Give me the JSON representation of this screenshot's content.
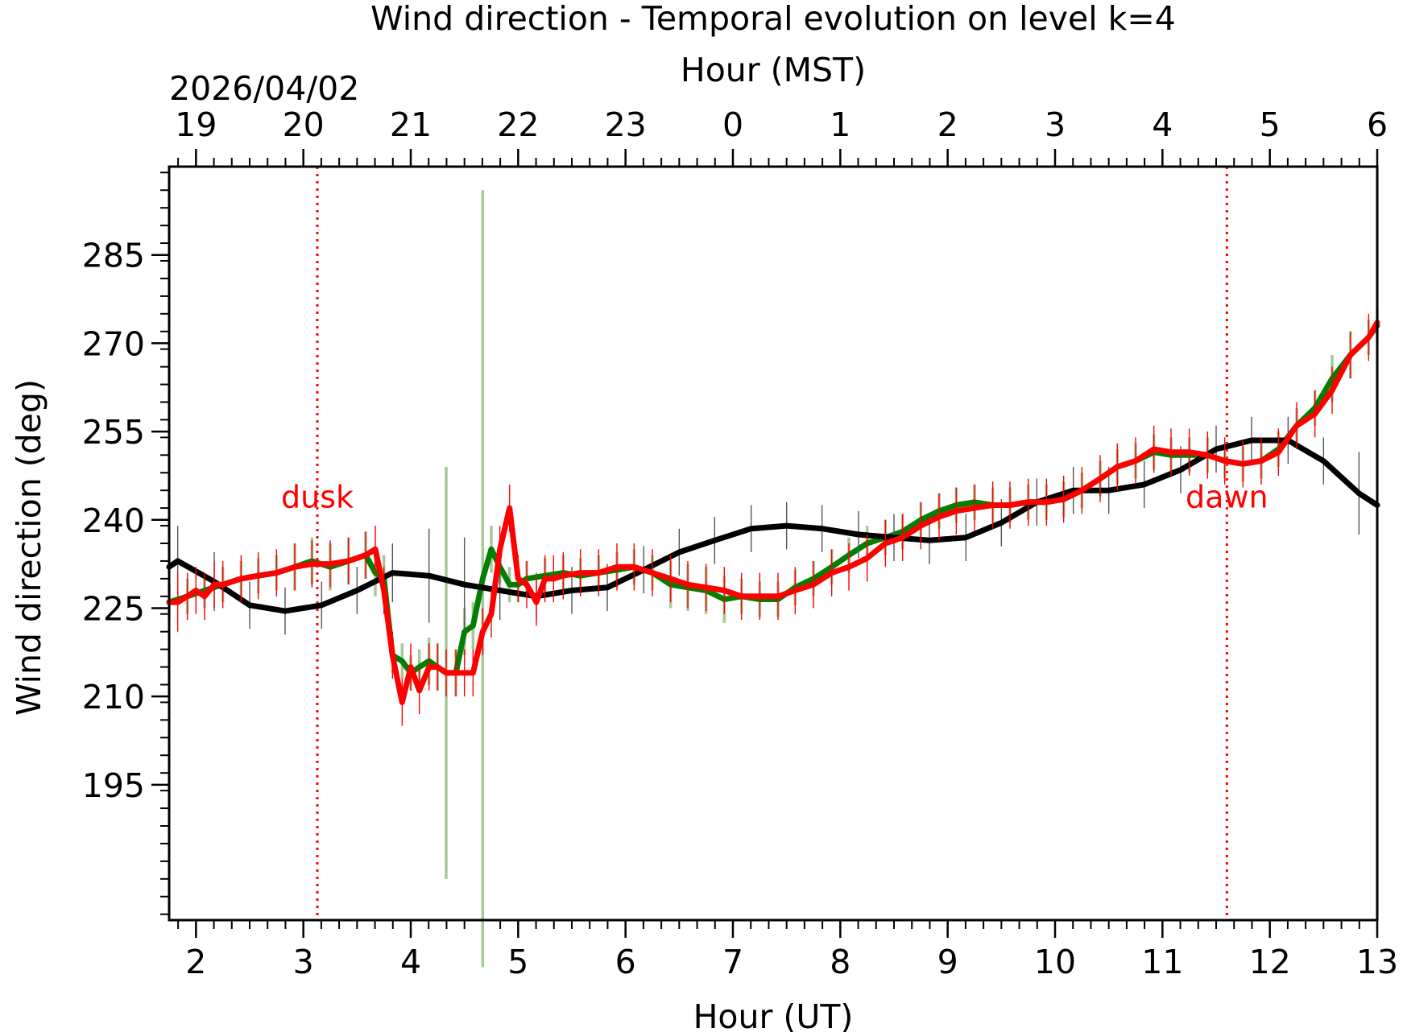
{
  "chart_data": {
    "type": "line",
    "title": "Wind direction - Temporal evolution on level k=4",
    "date_label": "2026/04/02",
    "xlabel": "Hour (UT)",
    "x2label": "Hour (MST)",
    "ylabel": "Wind direction (deg)",
    "xlim": [
      1.75,
      13.0
    ],
    "ylim": [
      172,
      300
    ],
    "x_ticks": [
      2,
      3,
      4,
      5,
      6,
      7,
      8,
      9,
      10,
      11,
      12,
      13
    ],
    "x_tick_labels": [
      "2",
      "3",
      "4",
      "5",
      "6",
      "7",
      "8",
      "9",
      "10",
      "11",
      "12",
      "13"
    ],
    "x2_tick_labels": [
      "19",
      "20",
      "21",
      "22",
      "23",
      "0",
      "1",
      "2",
      "3",
      "4",
      "5",
      "6"
    ],
    "y_ticks": [
      195,
      210,
      225,
      240,
      255,
      270,
      285
    ],
    "y_tick_labels": [
      "195",
      "210",
      "225",
      "240",
      "255",
      "270",
      "285"
    ],
    "grid": false,
    "annotations": [
      {
        "text": "dusk",
        "x": 3.13,
        "y": 244,
        "color": "#ff0000",
        "line_style": "dotted"
      },
      {
        "text": "dawn",
        "x": 11.6,
        "y": 244,
        "color": "#ff0000",
        "line_style": "dotted"
      }
    ],
    "series": [
      {
        "color": "#007f00",
        "err_color": "#a8c89a",
        "x": [
          1.75,
          1.92,
          2.08,
          2.25,
          2.42,
          2.58,
          2.75,
          2.92,
          3.08,
          3.25,
          3.42,
          3.58,
          3.67,
          3.75,
          3.83,
          3.92,
          4.0,
          4.08,
          4.17,
          4.25,
          4.33,
          4.42,
          4.5,
          4.58,
          4.67,
          4.75,
          4.83,
          4.92,
          5.0,
          5.08,
          5.25,
          5.42,
          5.58,
          5.75,
          5.92,
          6.08,
          6.25,
          6.42,
          6.58,
          6.75,
          6.92,
          7.08,
          7.25,
          7.42,
          7.58,
          7.75,
          7.92,
          8.08,
          8.25,
          8.42,
          8.58,
          8.75,
          8.92,
          9.08,
          9.25,
          9.42,
          9.58,
          9.75,
          9.92,
          10.08,
          10.25,
          10.42,
          10.58,
          10.75,
          10.92,
          11.08,
          11.25,
          11.42,
          11.58,
          11.75,
          11.92,
          12.08,
          12.25,
          12.42,
          12.58,
          12.75,
          12.92,
          13.0
        ],
        "y": [
          226,
          227,
          228,
          229,
          230,
          230.5,
          231,
          232,
          233,
          232,
          233,
          234,
          231,
          230,
          217,
          216,
          214,
          215,
          216,
          215,
          214,
          214,
          221,
          222,
          230,
          235,
          232,
          229,
          229,
          230,
          230.5,
          231,
          230.5,
          231,
          231.5,
          232,
          231,
          229,
          228.5,
          228,
          226.5,
          227,
          226.5,
          226.5,
          228.5,
          230,
          232,
          234,
          236,
          237,
          238,
          240,
          241.5,
          242.5,
          243,
          242.5,
          242.5,
          243,
          243,
          243.5,
          245,
          247,
          249,
          250,
          251.5,
          251,
          251,
          251,
          250,
          249.5,
          250,
          252,
          256,
          259,
          264,
          268,
          271,
          273
        ],
        "err": [
          3,
          3,
          3,
          3,
          3,
          3,
          3,
          4,
          4,
          4,
          4,
          4,
          4,
          4,
          3,
          3,
          3,
          3,
          4,
          4,
          35,
          4,
          4,
          4,
          66,
          4,
          3,
          3,
          3,
          3,
          3,
          3,
          3,
          3,
          3,
          3,
          3,
          4,
          4,
          4,
          4,
          3,
          3,
          3,
          3,
          3,
          3,
          3,
          3,
          3,
          3,
          3,
          3,
          3,
          3,
          3,
          3,
          3,
          3,
          3,
          3,
          3,
          3,
          3,
          3,
          3,
          3,
          3,
          3,
          3,
          3,
          3,
          3,
          3,
          4,
          4,
          3,
          3
        ]
      },
      {
        "color": "#ff0000",
        "err_color": "#ff0000",
        "x": [
          1.75,
          1.83,
          1.92,
          2.0,
          2.08,
          2.17,
          2.25,
          2.42,
          2.58,
          2.75,
          2.92,
          3.08,
          3.25,
          3.42,
          3.58,
          3.67,
          3.75,
          3.83,
          3.92,
          4.0,
          4.08,
          4.17,
          4.25,
          4.33,
          4.42,
          4.5,
          4.58,
          4.67,
          4.75,
          4.83,
          4.92,
          5.0,
          5.08,
          5.17,
          5.25,
          5.33,
          5.42,
          5.58,
          5.75,
          5.92,
          6.08,
          6.25,
          6.42,
          6.58,
          6.75,
          6.92,
          7.08,
          7.25,
          7.42,
          7.58,
          7.75,
          7.92,
          8.08,
          8.25,
          8.42,
          8.58,
          8.75,
          8.92,
          9.08,
          9.25,
          9.42,
          9.58,
          9.75,
          9.92,
          10.08,
          10.25,
          10.42,
          10.58,
          10.75,
          10.92,
          11.08,
          11.25,
          11.42,
          11.58,
          11.75,
          11.92,
          12.08,
          12.25,
          12.42,
          12.58,
          12.75,
          12.92,
          13.0
        ],
        "y": [
          226,
          226,
          227,
          228,
          227,
          229,
          229,
          230,
          230.5,
          231,
          232,
          232.5,
          232.5,
          233,
          234,
          235,
          228,
          217,
          209,
          215,
          211,
          215,
          215,
          214,
          214,
          214,
          214,
          221,
          224,
          235,
          242,
          230,
          229,
          226,
          230,
          230,
          230.5,
          231,
          231,
          232,
          232,
          231,
          230,
          229,
          228.5,
          228,
          227,
          227,
          227,
          228,
          229,
          231,
          232,
          233.5,
          236,
          237,
          239,
          240.5,
          241.5,
          242,
          242.5,
          242.5,
          243,
          243,
          243.5,
          245,
          247,
          249,
          250,
          252,
          251.5,
          251.5,
          251,
          250,
          249.5,
          250,
          251.5,
          256,
          258,
          262,
          268,
          271,
          273.5
        ],
        "err": [
          5,
          5,
          4,
          4,
          4,
          4,
          4,
          4,
          4,
          4,
          4,
          4,
          4,
          4,
          4,
          4,
          4,
          4,
          4,
          4,
          4,
          4,
          4,
          4,
          4,
          4,
          4,
          4,
          4,
          4,
          4,
          4,
          4,
          4,
          4,
          4,
          4,
          4,
          4,
          4,
          4,
          4,
          4,
          4,
          4,
          4,
          4,
          4,
          4,
          4,
          4,
          4,
          4,
          4,
          4,
          4,
          4,
          4,
          4,
          4,
          4,
          4,
          4,
          4,
          4,
          4,
          4,
          4,
          4,
          4,
          4,
          4,
          4,
          4,
          4,
          4,
          4,
          4,
          4,
          4,
          4,
          4,
          4
        ]
      },
      {
        "color": "#000000",
        "err_color": "#555555",
        "x": [
          1.75,
          1.83,
          2.17,
          2.5,
          2.83,
          3.17,
          3.5,
          3.83,
          4.17,
          4.5,
          4.83,
          5.17,
          5.5,
          5.83,
          6.17,
          6.5,
          6.83,
          7.17,
          7.5,
          7.83,
          8.17,
          8.5,
          8.83,
          9.17,
          9.5,
          9.83,
          10.17,
          10.5,
          10.83,
          11.17,
          11.5,
          11.83,
          12.17,
          12.5,
          12.83,
          13.0
        ],
        "y": [
          232,
          233,
          229.5,
          225.5,
          224.5,
          225.5,
          228,
          231,
          230.5,
          229,
          228,
          227,
          228,
          228.5,
          231.5,
          234.5,
          236.5,
          238.5,
          239,
          238.5,
          237.5,
          237,
          236.5,
          237,
          239.5,
          243,
          245,
          245,
          246,
          248.5,
          252,
          253.5,
          253.5,
          250,
          244.5,
          242.5
        ],
        "err": [
          6,
          6,
          5,
          4,
          4,
          4,
          4,
          5,
          8,
          8,
          5,
          4,
          4,
          4,
          4,
          4,
          4,
          4,
          4,
          4,
          4,
          4,
          4,
          4,
          4,
          4,
          4,
          4,
          4,
          4,
          4,
          4,
          4,
          4,
          7,
          4
        ]
      }
    ]
  }
}
